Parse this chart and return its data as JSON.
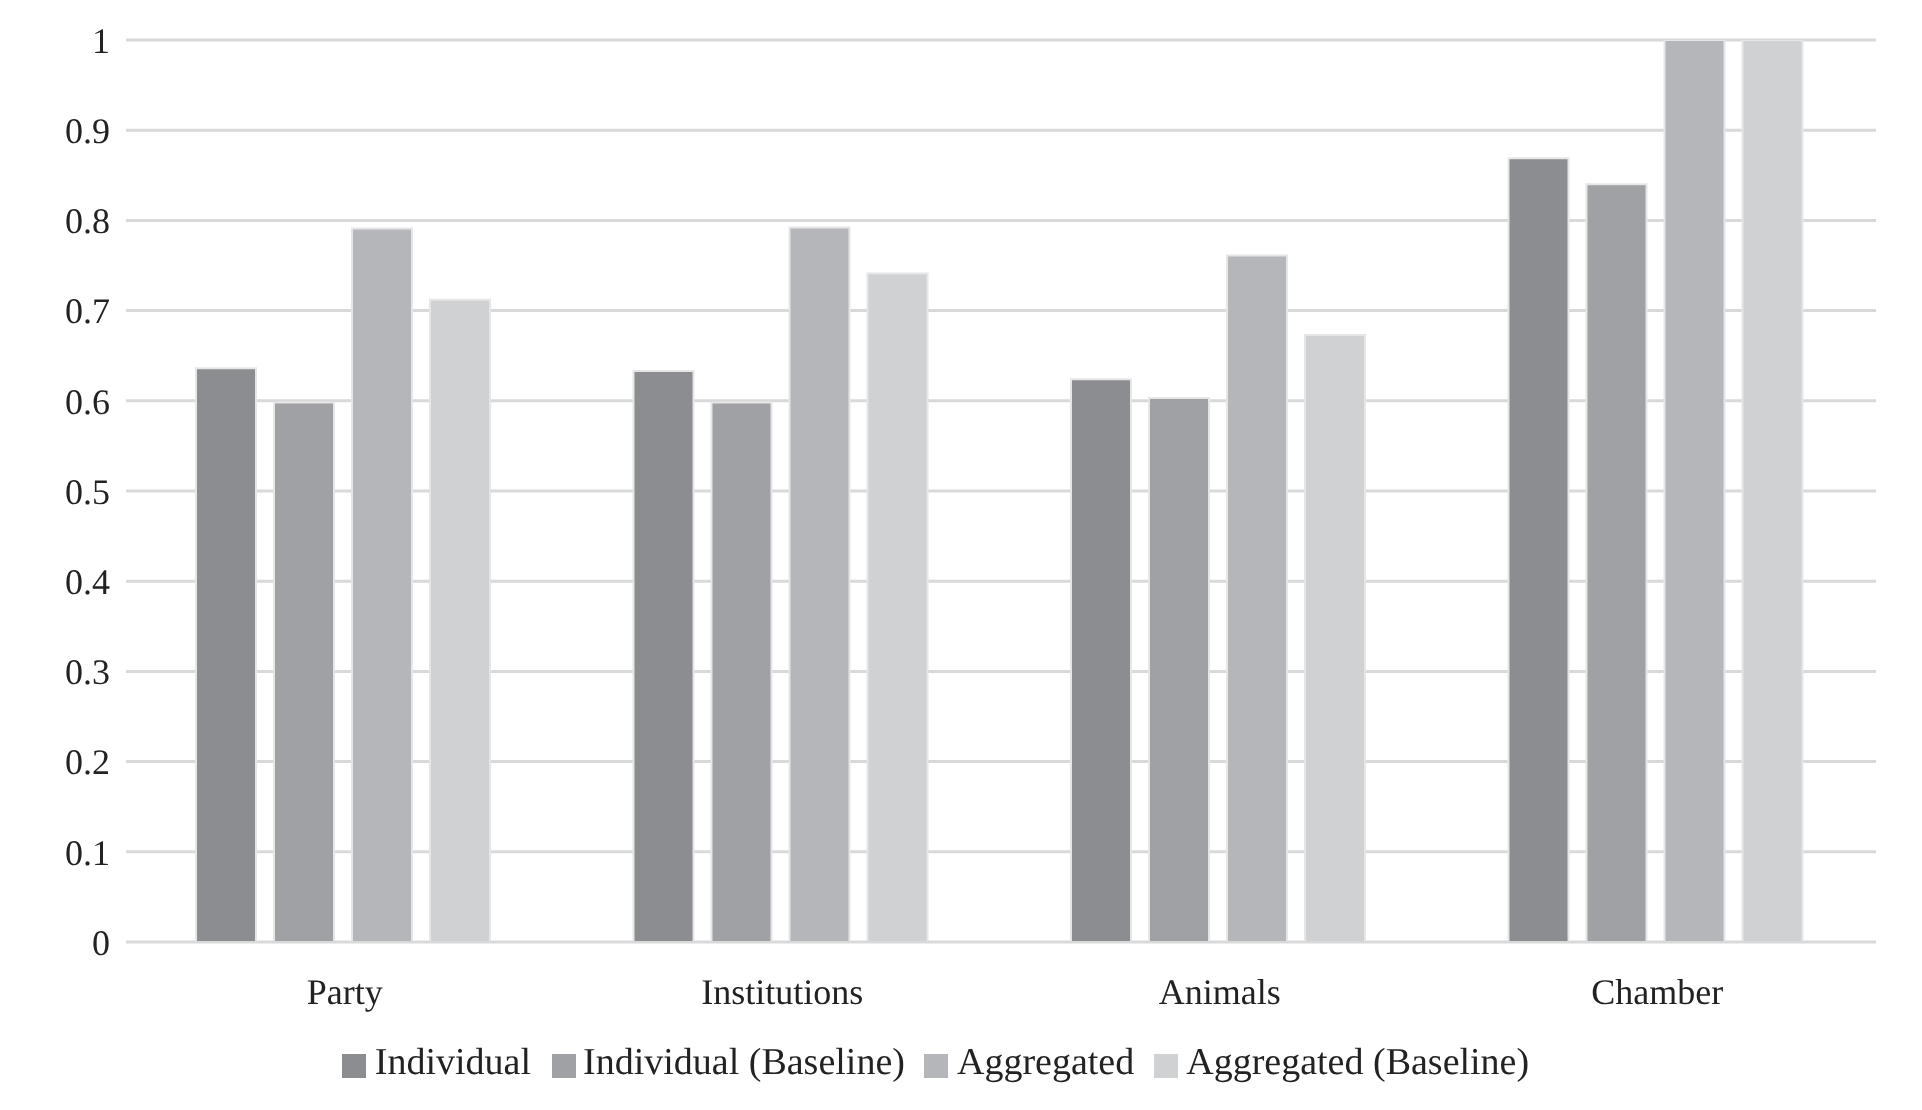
{
  "chart_data": {
    "type": "bar",
    "categories": [
      "Party",
      "Institutions",
      "Animals",
      "Chamber"
    ],
    "series": [
      {
        "name": "Individual",
        "color": "#8c8d91",
        "values": [
          0.636,
          0.633,
          0.624,
          0.869
        ]
      },
      {
        "name": "Individual (Baseline)",
        "color": "#a0a1a5",
        "values": [
          0.598,
          0.598,
          0.603,
          0.84
        ]
      },
      {
        "name": "Aggregated",
        "color": "#b5b6b9",
        "values": [
          0.791,
          0.792,
          0.761,
          1
        ]
      },
      {
        "name": "Aggregated (Baseline)",
        "color": "#d0d1d3",
        "values": [
          0.712,
          0.741,
          0.673,
          1
        ]
      }
    ],
    "ylim": [
      0,
      1
    ],
    "yticks": [
      0,
      0.1,
      0.2,
      0.3,
      0.4,
      0.5,
      0.6,
      0.7,
      0.8,
      0.9,
      1
    ],
    "grid": "y",
    "legend": "bottom"
  }
}
